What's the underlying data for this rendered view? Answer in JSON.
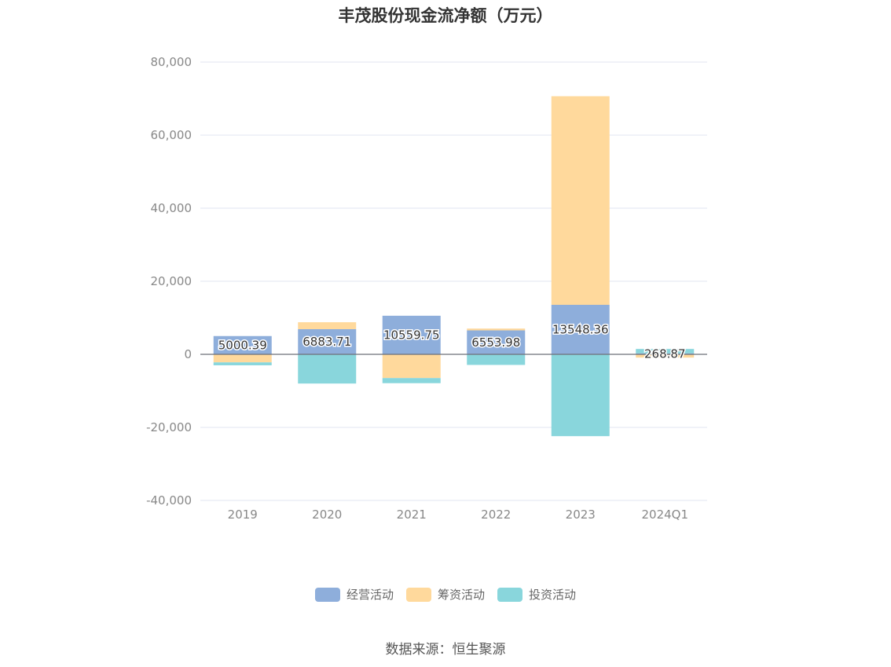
{
  "chart_data": {
    "type": "bar",
    "stacked": true,
    "title": "丰茂股份现金流净额（万元）",
    "categories": [
      "2019",
      "2020",
      "2021",
      "2022",
      "2023",
      "2024Q1"
    ],
    "series": [
      {
        "name": "经营活动",
        "color": "#8eaedb",
        "values": [
          5000.39,
          6883.71,
          10559.75,
          6553.98,
          13548.36,
          268.87
        ]
      },
      {
        "name": "筹资活动",
        "color": "#ffd99c",
        "values": [
          -2200,
          1900,
          -6500,
          500,
          57100,
          -900
        ]
      },
      {
        "name": "投资活动",
        "color": "#89d6dc",
        "values": [
          -800,
          -8000,
          -1400,
          -2900,
          -22400,
          1200
        ]
      }
    ],
    "data_labels": [
      "5000.39",
      "6883.71",
      "10559.75",
      "6553.98",
      "13548.36",
      "268.87"
    ],
    "y_ticks": [
      80000,
      60000,
      40000,
      20000,
      0,
      -20000,
      -40000
    ],
    "y_tick_labels": [
      "80,000",
      "60,000",
      "40,000",
      "20,000",
      "0",
      "-20,000",
      "-40,000"
    ],
    "ylim": [
      -40000,
      80000
    ],
    "grid": true,
    "legend_position": "bottom"
  },
  "source": "数据来源：恒生聚源"
}
